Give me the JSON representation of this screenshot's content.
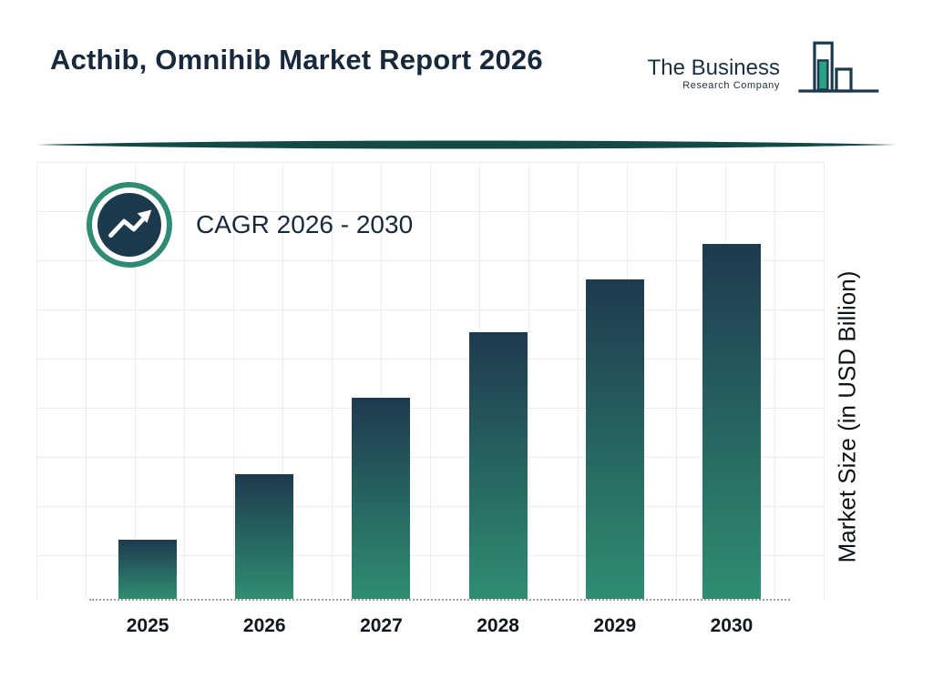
{
  "header": {
    "title": "Acthib, Omnihib Market Report 2026"
  },
  "logo": {
    "line1": "The Business",
    "line2": "Research Company"
  },
  "chart_data": {
    "type": "bar",
    "title": "Acthib, Omnihib Market Report 2026",
    "categories": [
      "2025",
      "2026",
      "2027",
      "2028",
      "2029",
      "2030"
    ],
    "values": [
      1.0,
      2.1,
      3.4,
      4.5,
      5.4,
      6.0
    ],
    "values_note": "estimated relative heights; no numeric data labels shown on chart",
    "xlabel": "",
    "ylabel": "Market Size (in USD Billion)",
    "annotation": "CAGR 2026 - 2030",
    "ylim": [
      0,
      6.5
    ],
    "grid": true,
    "legend": "none"
  },
  "colors": {
    "bar_gradient_top": "#1e3a4e",
    "bar_gradient_bottom": "#2f8d72",
    "accent_teal": "#2e8c75",
    "dark_navy": "#1c3a4c",
    "divider": "#134a45"
  }
}
